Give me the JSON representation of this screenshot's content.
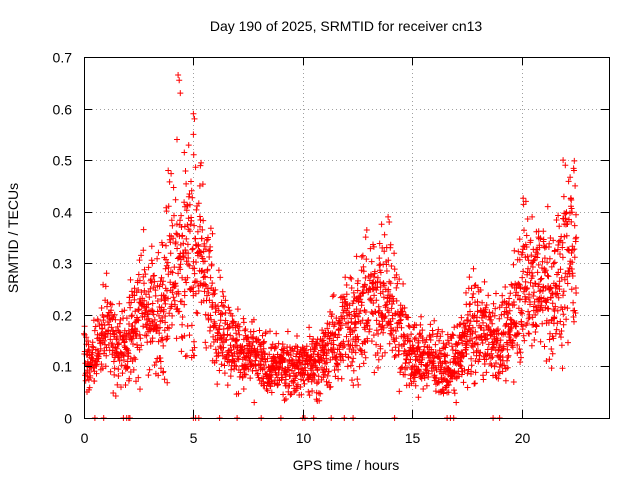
{
  "chart_data": {
    "type": "scatter",
    "title": "Day 190 of 2025, SRMTID for receiver cn13",
    "xlabel": "GPS time / hours",
    "ylabel": "SRMTID / TECUs",
    "xlim": [
      0,
      24
    ],
    "ylim": [
      0,
      0.7
    ],
    "xticks": [
      0,
      5,
      10,
      15,
      20
    ],
    "xtick_labels": [
      "0",
      "5",
      "10",
      "15",
      "20"
    ],
    "yticks": [
      0,
      0.1,
      0.2,
      0.3,
      0.4,
      0.5,
      0.6,
      0.7
    ],
    "ytick_labels": [
      "0",
      "0.1",
      "0.2",
      "0.3",
      "0.4",
      "0.5",
      "0.6",
      "0.7"
    ],
    "grid": true,
    "marker": "+",
    "color": "#ff0000",
    "series": [
      {
        "name": "SRMTID",
        "profile": [
          [
            0.0,
            0.12
          ],
          [
            0.3,
            0.1
          ],
          [
            0.6,
            0.14
          ],
          [
            1.0,
            0.18
          ],
          [
            1.3,
            0.15
          ],
          [
            1.6,
            0.14
          ],
          [
            2.0,
            0.15
          ],
          [
            2.3,
            0.18
          ],
          [
            2.6,
            0.22
          ],
          [
            3.0,
            0.2
          ],
          [
            3.3,
            0.2
          ],
          [
            3.6,
            0.22
          ],
          [
            3.9,
            0.28
          ],
          [
            4.2,
            0.33
          ],
          [
            4.5,
            0.3
          ],
          [
            4.8,
            0.33
          ],
          [
            5.1,
            0.3
          ],
          [
            5.4,
            0.32
          ],
          [
            5.7,
            0.24
          ],
          [
            6.0,
            0.2
          ],
          [
            6.3,
            0.18
          ],
          [
            6.6,
            0.15
          ],
          [
            7.0,
            0.13
          ],
          [
            7.5,
            0.12
          ],
          [
            8.0,
            0.11
          ],
          [
            8.5,
            0.1
          ],
          [
            9.0,
            0.1
          ],
          [
            9.5,
            0.1
          ],
          [
            10.0,
            0.1
          ],
          [
            10.5,
            0.11
          ],
          [
            11.0,
            0.12
          ],
          [
            11.5,
            0.15
          ],
          [
            12.0,
            0.18
          ],
          [
            12.5,
            0.2
          ],
          [
            13.0,
            0.22
          ],
          [
            13.5,
            0.24
          ],
          [
            14.0,
            0.22
          ],
          [
            14.5,
            0.17
          ],
          [
            15.0,
            0.12
          ],
          [
            15.5,
            0.12
          ],
          [
            16.0,
            0.11
          ],
          [
            16.5,
            0.1
          ],
          [
            17.0,
            0.11
          ],
          [
            17.5,
            0.16
          ],
          [
            18.0,
            0.18
          ],
          [
            18.5,
            0.16
          ],
          [
            19.0,
            0.15
          ],
          [
            19.5,
            0.17
          ],
          [
            20.0,
            0.26
          ],
          [
            20.5,
            0.27
          ],
          [
            21.0,
            0.26
          ],
          [
            21.5,
            0.24
          ],
          [
            22.0,
            0.3
          ],
          [
            22.5,
            0.33
          ]
        ],
        "extremes": [
          [
            4.3,
            0.665
          ],
          [
            4.35,
            0.655
          ],
          [
            4.4,
            0.63
          ],
          [
            5.0,
            0.59
          ],
          [
            5.05,
            0.58
          ],
          [
            5.0,
            0.55
          ],
          [
            3.85,
            0.48
          ],
          [
            4.25,
            0.54
          ],
          [
            5.3,
            0.45
          ],
          [
            13.9,
            0.39
          ],
          [
            13.95,
            0.38
          ],
          [
            21.9,
            0.5
          ],
          [
            22.0,
            0.49
          ],
          [
            22.4,
            0.48
          ],
          [
            20.2,
            0.42
          ],
          [
            21.2,
            0.41
          ],
          [
            14.0,
            0.33
          ],
          [
            13.5,
            0.31
          ]
        ],
        "zero_values_x": [
          0.5,
          0.9,
          1.8,
          1.95,
          2.05,
          2.1,
          5.0,
          5.1,
          5.25,
          6.2,
          7.0,
          8.1,
          9.0,
          10.0,
          10.1,
          10.5,
          11.3,
          11.9,
          12.3,
          14.2,
          16.6,
          16.75,
          16.9,
          18.7,
          19.0
        ]
      }
    ]
  }
}
